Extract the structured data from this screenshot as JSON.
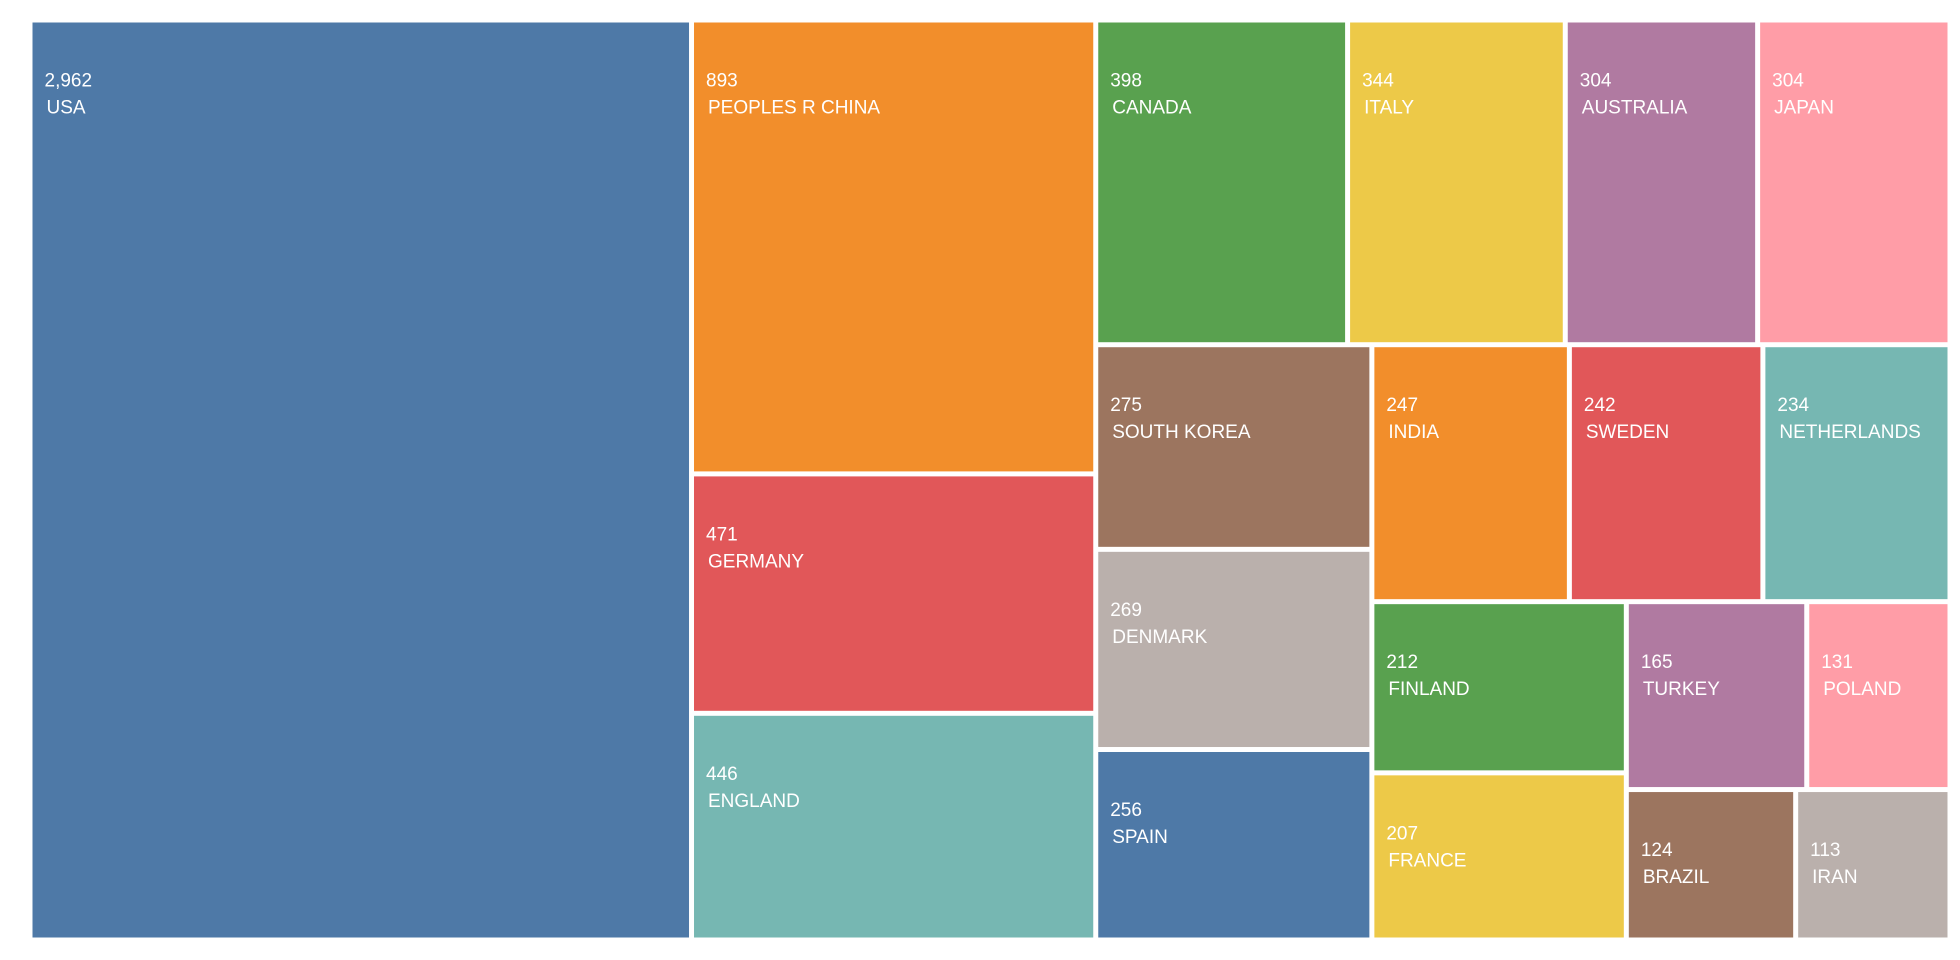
{
  "chart_data": {
    "type": "treemap",
    "categories": [
      "USA",
      "PEOPLES R CHINA",
      "GERMANY",
      "ENGLAND",
      "CANADA",
      "ITALY",
      "AUSTRALIA",
      "JAPAN",
      "SOUTH KOREA",
      "DENMARK",
      "SPAIN",
      "INDIA",
      "SWEDEN",
      "NETHERLANDS",
      "FINLAND",
      "FRANCE",
      "TURKEY",
      "POLAND",
      "BRAZIL",
      "IRAN"
    ],
    "values": [
      2962,
      893,
      471,
      446,
      398,
      344,
      304,
      304,
      275,
      269,
      256,
      247,
      242,
      234,
      212,
      207,
      165,
      131,
      124,
      113
    ],
    "value_labels": [
      "2,962",
      "893",
      "471",
      "446",
      "398",
      "344",
      "304",
      "304",
      "275",
      "269",
      "256",
      "247",
      "242",
      "234",
      "212",
      "207",
      "165",
      "131",
      "124",
      "113"
    ],
    "colors": [
      "#4e79a7",
      "#f28e2b",
      "#e15759",
      "#76b7b2",
      "#59a14f",
      "#edc948",
      "#b07aa1",
      "#ff9da7",
      "#9c755f",
      "#bab0ac",
      "#4e79a7",
      "#f28e2b",
      "#e15759",
      "#76b7b2",
      "#59a14f",
      "#edc948",
      "#b07aa1",
      "#ff9da7",
      "#9c755f",
      "#bab0ac"
    ]
  }
}
